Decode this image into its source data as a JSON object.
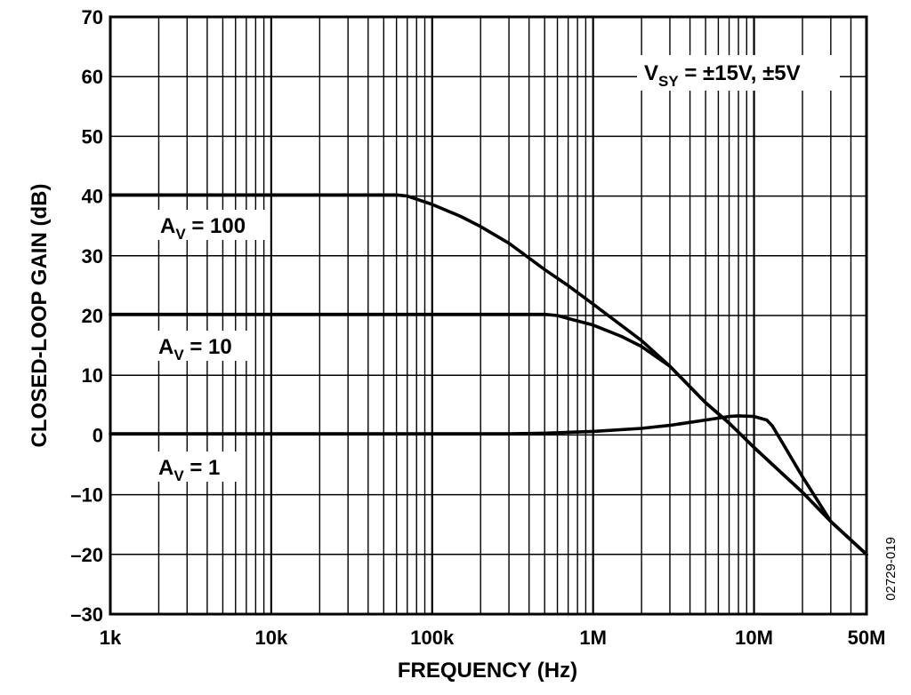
{
  "chart_data": {
    "type": "line",
    "x_scale": "log",
    "xlim": [
      1000,
      50000000
    ],
    "ylim": [
      -30,
      70
    ],
    "grid": true,
    "xlabel": "FREQUENCY (Hz)",
    "ylabel": "CLOSED-LOOP GAIN (dB)",
    "x_ticks": [
      {
        "value": 1000,
        "label": "1k"
      },
      {
        "value": 10000,
        "label": "10k"
      },
      {
        "value": 100000,
        "label": "100k"
      },
      {
        "value": 1000000,
        "label": "1M"
      },
      {
        "value": 10000000,
        "label": "10M"
      },
      {
        "value": 50000000,
        "label": "50M"
      }
    ],
    "y_ticks": [
      70,
      60,
      50,
      40,
      30,
      20,
      10,
      0,
      -10,
      -20,
      -30
    ],
    "y_tick_labels": [
      "70",
      "60",
      "50",
      "40",
      "30",
      "20",
      "10",
      "0",
      "–10",
      "–20",
      "–30"
    ],
    "condition": {
      "main": "V",
      "sub": "SY",
      "rest": " = ±15V, ±5V"
    },
    "figure_id": "02729-019",
    "series": [
      {
        "label_main": "A",
        "label_sub": "V",
        "label_rest": " = 100",
        "x": [
          1000,
          60000,
          70000,
          100000,
          150000,
          200000,
          300000,
          500000,
          700000,
          1000000,
          2000000,
          3000000,
          5000000,
          7000000,
          10000000,
          20000000,
          30000000,
          50000000
        ],
        "y": [
          40.2,
          40.2,
          40.0,
          38.6,
          36.6,
          34.9,
          32.1,
          27.7,
          25.0,
          21.9,
          15.8,
          11.5,
          5.4,
          2.0,
          -2.1,
          -9.6,
          -14.5,
          -20.0
        ]
      },
      {
        "label_main": "A",
        "label_sub": "V",
        "label_rest": " = 10",
        "x": [
          1000,
          500000,
          600000,
          700000,
          1000000,
          1500000,
          2000000,
          3000000,
          5000000,
          7000000,
          10000000,
          20000000,
          30000000,
          50000000
        ],
        "y": [
          20.2,
          20.2,
          20.0,
          19.5,
          18.4,
          16.5,
          14.8,
          11.5,
          5.4,
          2.0,
          -2.1,
          -9.6,
          -14.5,
          -20.0
        ]
      },
      {
        "label_main": "A",
        "label_sub": "V",
        "label_rest": " = 1",
        "x": [
          1000,
          300000,
          500000,
          1000000,
          2000000,
          3000000,
          5000000,
          7000000,
          8000000,
          10000000,
          12000000,
          13000000,
          15000000,
          20000000,
          30000000,
          50000000
        ],
        "y": [
          0.2,
          0.2,
          0.3,
          0.6,
          1.1,
          1.6,
          2.5,
          3.1,
          3.2,
          3.1,
          2.5,
          1.5,
          -1.3,
          -7.0,
          -14.5,
          -20.0
        ]
      }
    ]
  }
}
